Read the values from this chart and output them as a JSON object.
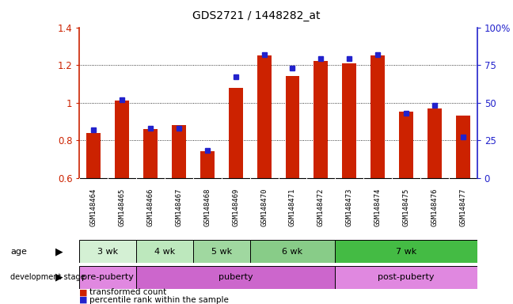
{
  "title": "GDS2721 / 1448282_at",
  "samples": [
    "GSM148464",
    "GSM148465",
    "GSM148466",
    "GSM148467",
    "GSM148468",
    "GSM148469",
    "GSM148470",
    "GSM148471",
    "GSM148472",
    "GSM148473",
    "GSM148474",
    "GSM148475",
    "GSM148476",
    "GSM148477"
  ],
  "transformed_count": [
    0.84,
    1.01,
    0.86,
    0.88,
    0.74,
    1.08,
    1.25,
    1.14,
    1.22,
    1.21,
    1.25,
    0.95,
    0.97,
    0.93
  ],
  "percentile_rank": [
    32,
    52,
    33,
    33,
    18,
    67,
    82,
    73,
    79,
    79,
    82,
    43,
    48,
    27
  ],
  "bar_color": "#cc2200",
  "dot_color": "#2222cc",
  "ylim_left": [
    0.6,
    1.4
  ],
  "ylim_right": [
    0,
    100
  ],
  "yticks_left": [
    0.6,
    0.8,
    1.0,
    1.2,
    1.4
  ],
  "yticks_right": [
    0,
    25,
    50,
    75,
    100
  ],
  "ytick_labels_right": [
    "0",
    "25",
    "50",
    "75",
    "100%"
  ],
  "age_groups": [
    {
      "label": "3 wk",
      "start": 0,
      "end": 2,
      "color": "#d4f0d4"
    },
    {
      "label": "4 wk",
      "start": 2,
      "end": 4,
      "color": "#bde8bd"
    },
    {
      "label": "5 wk",
      "start": 4,
      "end": 6,
      "color": "#a0d8a0"
    },
    {
      "label": "6 wk",
      "start": 6,
      "end": 9,
      "color": "#88cc88"
    },
    {
      "label": "7 wk",
      "start": 9,
      "end": 14,
      "color": "#44bb44"
    }
  ],
  "dev_groups": [
    {
      "label": "pre-puberty",
      "start": 0,
      "end": 2,
      "color": "#e088e0"
    },
    {
      "label": "puberty",
      "start": 2,
      "end": 9,
      "color": "#cc66cc"
    },
    {
      "label": "post-puberty",
      "start": 9,
      "end": 14,
      "color": "#e088e0"
    }
  ],
  "legend_red": "transformed count",
  "legend_blue": "percentile rank within the sample",
  "age_label": "age",
  "dev_label": "development stage",
  "background_color": "#ffffff",
  "axis_color_left": "#cc2200",
  "axis_color_right": "#2222cc",
  "xtick_bg": "#cccccc",
  "bar_width": 0.5
}
